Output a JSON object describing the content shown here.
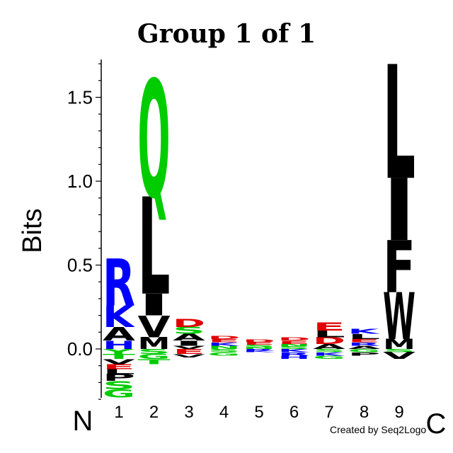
{
  "chart_data": {
    "type": "sequence-logo",
    "title": "Group 1 of 1",
    "ylabel": "Bits",
    "ylim": [
      -0.3,
      1.7
    ],
    "yticks": [
      "0.0",
      "0.5",
      "1.0",
      "1.5"
    ],
    "ytick_values": [
      0.0,
      0.5,
      1.0,
      1.5
    ],
    "positions": [
      "1",
      "2",
      "3",
      "4",
      "5",
      "6",
      "7",
      "8",
      "9"
    ],
    "n_terminus_label": "N",
    "c_terminus_label": "C",
    "credit": "Created by Seq2Logo",
    "colors": {
      "basic": "#0000ff",
      "acidic": "#e00000",
      "polar": "#00cc00",
      "hydrophobic": "#000000"
    },
    "stacks": [
      {
        "position": "1",
        "positive": [
          {
            "letter": "H",
            "bits": 0.05,
            "color": "#0000ff"
          },
          {
            "letter": "A",
            "bits": 0.08,
            "color": "#000000"
          },
          {
            "letter": "K",
            "bits": 0.13,
            "color": "#0000ff"
          },
          {
            "letter": "R",
            "bits": 0.28,
            "color": "#0000ff"
          }
        ],
        "negative": [
          {
            "letter": "Y",
            "bits": 0.03,
            "color": "#00cc00"
          },
          {
            "letter": "T",
            "bits": 0.03,
            "color": "#00cc00"
          },
          {
            "letter": "V",
            "bits": 0.03,
            "color": "#000000"
          },
          {
            "letter": "E",
            "bits": 0.03,
            "color": "#e00000"
          },
          {
            "letter": "L",
            "bits": 0.03,
            "color": "#000000"
          },
          {
            "letter": "P",
            "bits": 0.04,
            "color": "#000000"
          },
          {
            "letter": "S",
            "bits": 0.05,
            "color": "#00cc00"
          },
          {
            "letter": "G",
            "bits": 0.05,
            "color": "#00cc00"
          }
        ]
      },
      {
        "position": "2",
        "positive": [
          {
            "letter": "M",
            "bits": 0.07,
            "color": "#000000"
          },
          {
            "letter": "V",
            "bits": 0.13,
            "color": "#000000"
          },
          {
            "letter": "I",
            "bits": 0.13,
            "color": "#000000"
          },
          {
            "letter": "L",
            "bits": 0.58,
            "color": "#000000"
          },
          {
            "letter": "Q",
            "bits": 0.7,
            "color": "#00cc00"
          }
        ],
        "negative": [
          {
            "letter": "S",
            "bits": 0.03,
            "color": "#00cc00"
          },
          {
            "letter": "G",
            "bits": 0.03,
            "color": "#00cc00"
          },
          {
            "letter": "T",
            "bits": 0.03,
            "color": "#00cc00"
          }
        ]
      },
      {
        "position": "3",
        "positive": [
          {
            "letter": "V",
            "bits": 0.02,
            "color": "#000000"
          },
          {
            "letter": "I",
            "bits": 0.03,
            "color": "#000000"
          },
          {
            "letter": "A",
            "bits": 0.04,
            "color": "#000000"
          },
          {
            "letter": "S",
            "bits": 0.04,
            "color": "#00cc00"
          },
          {
            "letter": "D",
            "bits": 0.05,
            "color": "#e00000"
          }
        ],
        "negative": [
          {
            "letter": "E",
            "bits": 0.03,
            "color": "#e00000"
          },
          {
            "letter": "V",
            "bits": 0.02,
            "color": "#000000"
          }
        ]
      },
      {
        "position": "4",
        "positive": [
          {
            "letter": "N",
            "bits": 0.02,
            "color": "#00cc00"
          },
          {
            "letter": "K",
            "bits": 0.02,
            "color": "#0000ff"
          },
          {
            "letter": "E",
            "bits": 0.02,
            "color": "#e00000"
          },
          {
            "letter": "D",
            "bits": 0.02,
            "color": "#e00000"
          }
        ],
        "negative": [
          {
            "letter": "S",
            "bits": 0.02,
            "color": "#00cc00"
          },
          {
            "letter": "G",
            "bits": 0.02,
            "color": "#00cc00"
          }
        ]
      },
      {
        "position": "5",
        "positive": [
          {
            "letter": "N",
            "bits": 0.01,
            "color": "#00cc00"
          },
          {
            "letter": "S",
            "bits": 0.015,
            "color": "#00cc00"
          },
          {
            "letter": "E",
            "bits": 0.015,
            "color": "#e00000"
          },
          {
            "letter": "D",
            "bits": 0.015,
            "color": "#e00000"
          }
        ],
        "negative": [
          {
            "letter": "R",
            "bits": 0.01,
            "color": "#0000ff"
          },
          {
            "letter": "K",
            "bits": 0.01,
            "color": "#0000ff"
          }
        ]
      },
      {
        "position": "6",
        "positive": [
          {
            "letter": "S",
            "bits": 0.015,
            "color": "#00cc00"
          },
          {
            "letter": "N",
            "bits": 0.015,
            "color": "#00cc00"
          },
          {
            "letter": "E",
            "bits": 0.02,
            "color": "#e00000"
          },
          {
            "letter": "D",
            "bits": 0.02,
            "color": "#e00000"
          }
        ],
        "negative": [
          {
            "letter": "K",
            "bits": 0.02,
            "color": "#0000ff"
          },
          {
            "letter": "R",
            "bits": 0.02,
            "color": "#0000ff"
          },
          {
            "letter": "H",
            "bits": 0.02,
            "color": "#0000ff"
          }
        ]
      },
      {
        "position": "7",
        "positive": [
          {
            "letter": "A",
            "bits": 0.03,
            "color": "#000000"
          },
          {
            "letter": "D",
            "bits": 0.04,
            "color": "#e00000"
          },
          {
            "letter": "L",
            "bits": 0.04,
            "color": "#000000"
          },
          {
            "letter": "E",
            "bits": 0.05,
            "color": "#e00000"
          }
        ],
        "negative": [
          {
            "letter": "S",
            "bits": 0.02,
            "color": "#00cc00"
          },
          {
            "letter": "K",
            "bits": 0.02,
            "color": "#0000ff"
          },
          {
            "letter": "G",
            "bits": 0.02,
            "color": "#00cc00"
          }
        ]
      },
      {
        "position": "8",
        "positive": [
          {
            "letter": "A",
            "bits": 0.02,
            "color": "#000000"
          },
          {
            "letter": "R",
            "bits": 0.02,
            "color": "#0000ff"
          },
          {
            "letter": "E",
            "bits": 0.02,
            "color": "#e00000"
          },
          {
            "letter": "L",
            "bits": 0.03,
            "color": "#000000"
          },
          {
            "letter": "K",
            "bits": 0.03,
            "color": "#0000ff"
          }
        ],
        "negative": [
          {
            "letter": "G",
            "bits": 0.02,
            "color": "#00cc00"
          },
          {
            "letter": "P",
            "bits": 0.02,
            "color": "#000000"
          }
        ]
      },
      {
        "position": "9",
        "positive": [
          {
            "letter": "M",
            "bits": 0.06,
            "color": "#000000"
          },
          {
            "letter": "W",
            "bits": 0.28,
            "color": "#000000"
          },
          {
            "letter": "F",
            "bits": 0.31,
            "color": "#000000"
          },
          {
            "letter": "I",
            "bits": 0.37,
            "color": "#000000"
          },
          {
            "letter": "L",
            "bits": 0.68,
            "color": "#000000"
          }
        ],
        "negative": [
          {
            "letter": "S",
            "bits": 0.02,
            "color": "#00cc00"
          },
          {
            "letter": "V",
            "bits": 0.04,
            "color": "#000000"
          }
        ]
      }
    ]
  }
}
